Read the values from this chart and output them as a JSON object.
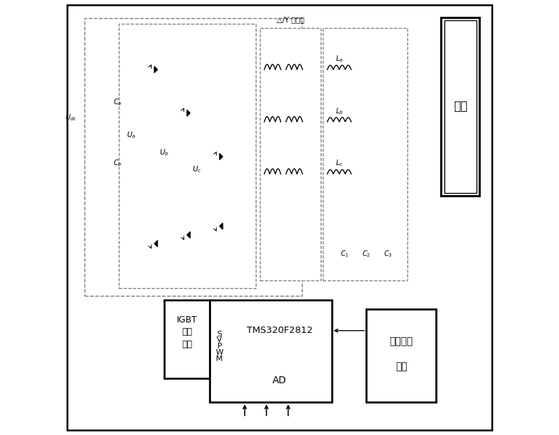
{
  "bg": "#ffffff",
  "lc": "#000000",
  "dc": "#777777",
  "figsize": [
    8.0,
    6.22
  ],
  "dpi": 100,
  "labels": {
    "load": "负载",
    "igbt1": "IGBT",
    "igbt2": "驱动",
    "igbt3": "电路",
    "svpwm": "SVPWM",
    "tms": "TMS320F2812",
    "ad": "AD",
    "pre1": "前置采样",
    "pre2": "处理",
    "trans": "△/Y 变压器",
    "udc": "$U_{dc}$",
    "ua": "$U_a$",
    "ub": "$U_b$",
    "uc": "$U_c$",
    "ca": "$C_a$",
    "cb": "$C_b$",
    "la": "$L_a$",
    "lb": "$L_b$",
    "lc_label": "$L_c$",
    "c1": "$C_1$",
    "c2": "$C_2$",
    "c3": "$C_3$"
  }
}
